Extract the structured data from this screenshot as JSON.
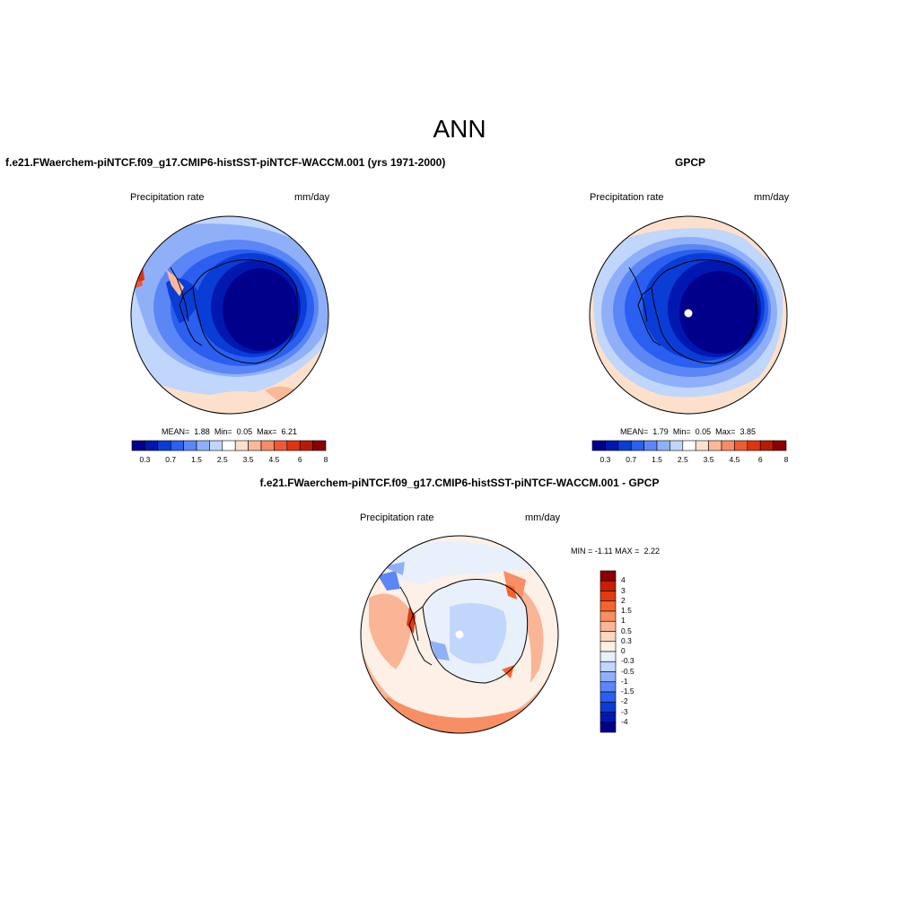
{
  "figure": {
    "title": "ANN"
  },
  "panels": [
    {
      "id": "model",
      "title": "f.e21.FWaerchem-piNTCF.f09_g17.CMIP6-histSST-piNTCF-WACCM.001 (yrs 1971-2000)",
      "variable": "Precipitation rate",
      "units": "mm/day",
      "stats": {
        "mean_label": "MEAN=",
        "mean": "1.88",
        "min_label": "Min=",
        "min": "0.05",
        "max_label": "Max=",
        "max": "6.21"
      },
      "projection": "south-polar-stereographic",
      "max_region": "Antarctic Peninsula west coast",
      "min_region": "East Antarctic interior"
    },
    {
      "id": "obs",
      "title": "GPCP",
      "variable": "Precipitation rate",
      "units": "mm/day",
      "stats": {
        "mean_label": "MEAN=",
        "mean": "1.79",
        "min_label": "Min=",
        "min": "0.05",
        "max_label": "Max=",
        "max": "3.85"
      },
      "projection": "south-polar-stereographic",
      "missing_data_marker": "south pole (white)"
    },
    {
      "id": "diff",
      "title": "f.e21.FWaerchem-piNTCF.f09_g17.CMIP6-histSST-piNTCF-WACCM.001 - GPCP",
      "variable": "Precipitation rate",
      "units": "mm/day",
      "stats": {
        "min_label": "MIN =",
        "min": "-1.11",
        "max_label": "MAX =",
        "max": "2.22"
      },
      "projection": "south-polar-stereographic"
    }
  ],
  "colorbar_abs": {
    "orientation": "horizontal",
    "tick_labels": [
      "0.3",
      "0.7",
      "1.5",
      "2.5",
      "3.5",
      "4.5",
      "6",
      "8"
    ],
    "colors": [
      "#00008b",
      "#0018b0",
      "#0a3cd6",
      "#2a5ff0",
      "#5b86f5",
      "#8fb0f8",
      "#c0d6fb",
      "#ffffff",
      "#fde0cc",
      "#f9b898",
      "#f58c68",
      "#ef5a34",
      "#de3410",
      "#b81b05",
      "#8b0000"
    ]
  },
  "colorbar_diff": {
    "orientation": "vertical",
    "tick_labels": [
      "4",
      "3",
      "2",
      "1.5",
      "1",
      "0.5",
      "0.3",
      "0",
      "-0.3",
      "-0.5",
      "-1",
      "-1.5",
      "-2",
      "-3",
      "-4"
    ],
    "colors_top_to_bottom": [
      "#8b0000",
      "#c81f03",
      "#e23b0c",
      "#f5642e",
      "#f88e64",
      "#fab596",
      "#fcd6c0",
      "#fdf0e6",
      "#e8f0fc",
      "#c0d6fb",
      "#8fb0f8",
      "#5b86f5",
      "#2a5ff0",
      "#0a3cd6",
      "#0018b0",
      "#00008b"
    ]
  }
}
